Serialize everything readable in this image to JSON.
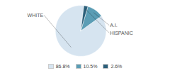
{
  "chart_data": {
    "type": "pie",
    "categories": [
      "WHITE",
      "A.I.",
      "HISPANIC"
    ],
    "values": [
      86.8,
      10.5,
      2.6
    ],
    "colors": [
      "#d6e4f0",
      "#5b9db5",
      "#2c5f7a"
    ],
    "value_labels": [
      "86.8%",
      "10.5%",
      "2.6%"
    ],
    "legend": "bottom"
  }
}
